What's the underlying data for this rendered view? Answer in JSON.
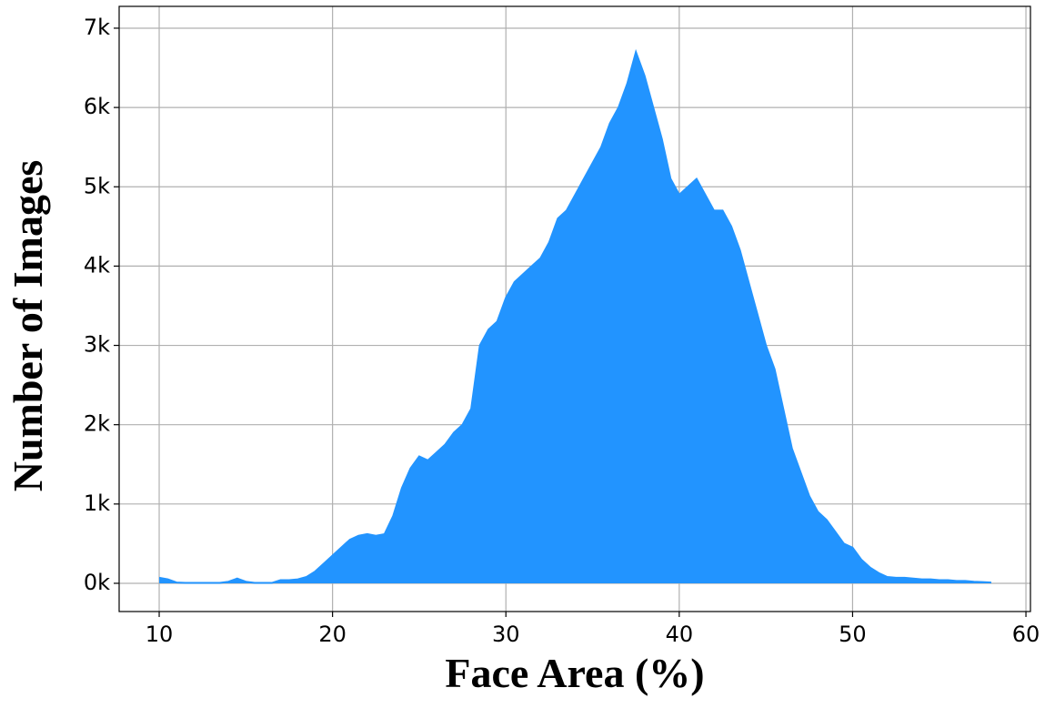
{
  "chart_data": {
    "type": "area",
    "xlabel": "Face Area (%)",
    "ylabel": "Number of Images",
    "color": "#2294ff",
    "x": [
      10,
      10.5,
      11,
      11.5,
      12,
      12.5,
      13,
      13.5,
      14,
      14.5,
      15,
      15.5,
      16,
      16.5,
      17,
      17.5,
      18,
      18.5,
      19,
      19.5,
      20,
      20.5,
      21,
      21.5,
      22,
      22.5,
      23,
      23.5,
      24,
      24.5,
      25,
      25.5,
      26,
      26.5,
      27,
      27.5,
      28,
      28.5,
      29,
      29.5,
      30,
      30.5,
      31,
      31.5,
      32,
      32.5,
      33,
      33.5,
      34,
      34.5,
      35,
      35.5,
      36,
      36.5,
      37,
      37.5,
      38,
      38.5,
      39,
      39.5,
      40,
      40.5,
      41,
      41.5,
      42,
      42.5,
      43,
      43.5,
      44,
      44.5,
      45,
      45.5,
      46,
      46.5,
      47,
      47.5,
      48,
      48.5,
      49,
      49.5,
      50,
      50.5,
      51,
      51.5,
      52,
      52.5,
      53,
      53.5,
      54,
      54.5,
      55,
      55.5,
      56,
      56.5,
      57,
      57.5,
      58
    ],
    "values": [
      70,
      50,
      10,
      5,
      5,
      5,
      5,
      5,
      20,
      60,
      20,
      5,
      5,
      5,
      40,
      40,
      50,
      80,
      150,
      250,
      350,
      450,
      550,
      600,
      620,
      600,
      620,
      850,
      1200,
      1450,
      1600,
      1550,
      1650,
      1750,
      1900,
      2000,
      2200,
      3000,
      3200,
      3300,
      3600,
      3800,
      3900,
      4000,
      4100,
      4300,
      4600,
      4700,
      4900,
      5100,
      5300,
      5500,
      5800,
      6000,
      6300,
      6700,
      6400,
      6000,
      5600,
      5100,
      4900,
      5000,
      5100,
      4900,
      4700,
      4700,
      4500,
      4200,
      3800,
      3400,
      3000,
      2700,
      2200,
      1700,
      1400,
      1100,
      900,
      800,
      650,
      500,
      450,
      300,
      200,
      130,
      80,
      70,
      70,
      60,
      50,
      50,
      40,
      40,
      30,
      30,
      20,
      15,
      10
    ],
    "xlim": [
      7.69,
      60.26
    ],
    "ylim": [
      -356,
      7275
    ],
    "xticks": [
      10,
      20,
      30,
      40,
      50,
      60
    ],
    "yticks": [
      {
        "value": 0,
        "label": "0k"
      },
      {
        "value": 1000,
        "label": "1k"
      },
      {
        "value": 2000,
        "label": "2k"
      },
      {
        "value": 3000,
        "label": "3k"
      },
      {
        "value": 4000,
        "label": "4k"
      },
      {
        "value": 5000,
        "label": "5k"
      },
      {
        "value": 6000,
        "label": "6k"
      },
      {
        "value": 7000,
        "label": "7k"
      }
    ],
    "grid": true
  }
}
